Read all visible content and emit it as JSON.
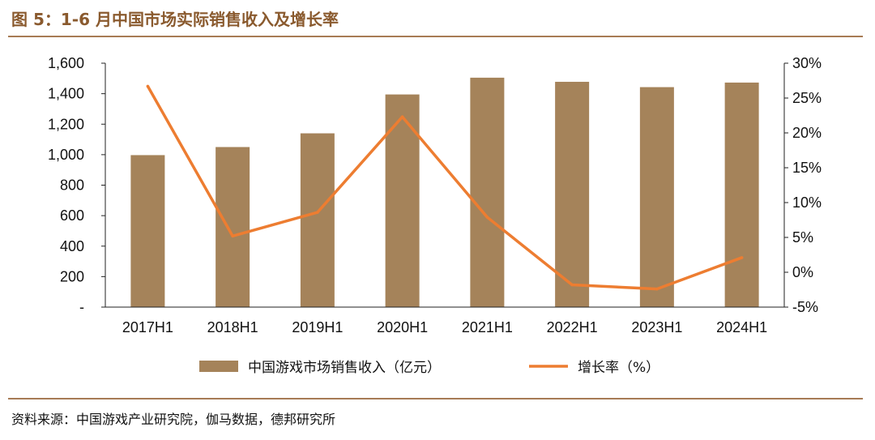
{
  "header": {
    "title": "图 5：1-6 月中国市场实际销售收入及增长率"
  },
  "footer": {
    "source": "资料来源：中国游戏产业研究院，伽马数据，德邦研究所"
  },
  "colors": {
    "bar": "#a5835a",
    "line": "#ed7d31",
    "rule": "#a77b55",
    "title": "#8a5a2e"
  },
  "chart_data": {
    "type": "bar",
    "categories": [
      "2017H1",
      "2018H1",
      "2019H1",
      "2020H1",
      "2021H1",
      "2022H1",
      "2023H1",
      "2024H1"
    ],
    "series": [
      {
        "name": "中国游戏市场销售收入（亿元）",
        "type": "bar",
        "axis": "left",
        "values": [
          997,
          1050,
          1140,
          1395,
          1505,
          1478,
          1443,
          1473
        ]
      },
      {
        "name": "增长率（%）",
        "type": "line",
        "axis": "right",
        "values": [
          26.7,
          5.2,
          8.6,
          22.3,
          7.9,
          -1.8,
          -2.4,
          2.1
        ]
      }
    ],
    "ylim_left": [
      0,
      1600
    ],
    "ylim_right": [
      -5,
      30
    ],
    "left_ticks": [
      "-",
      "200",
      "400",
      "600",
      "800",
      "1,000",
      "1,200",
      "1,400",
      "1,600"
    ],
    "right_ticks": [
      "-5%",
      "0%",
      "5%",
      "10%",
      "15%",
      "20%",
      "25%",
      "30%"
    ],
    "grid": false,
    "legend_position": "bottom"
  }
}
